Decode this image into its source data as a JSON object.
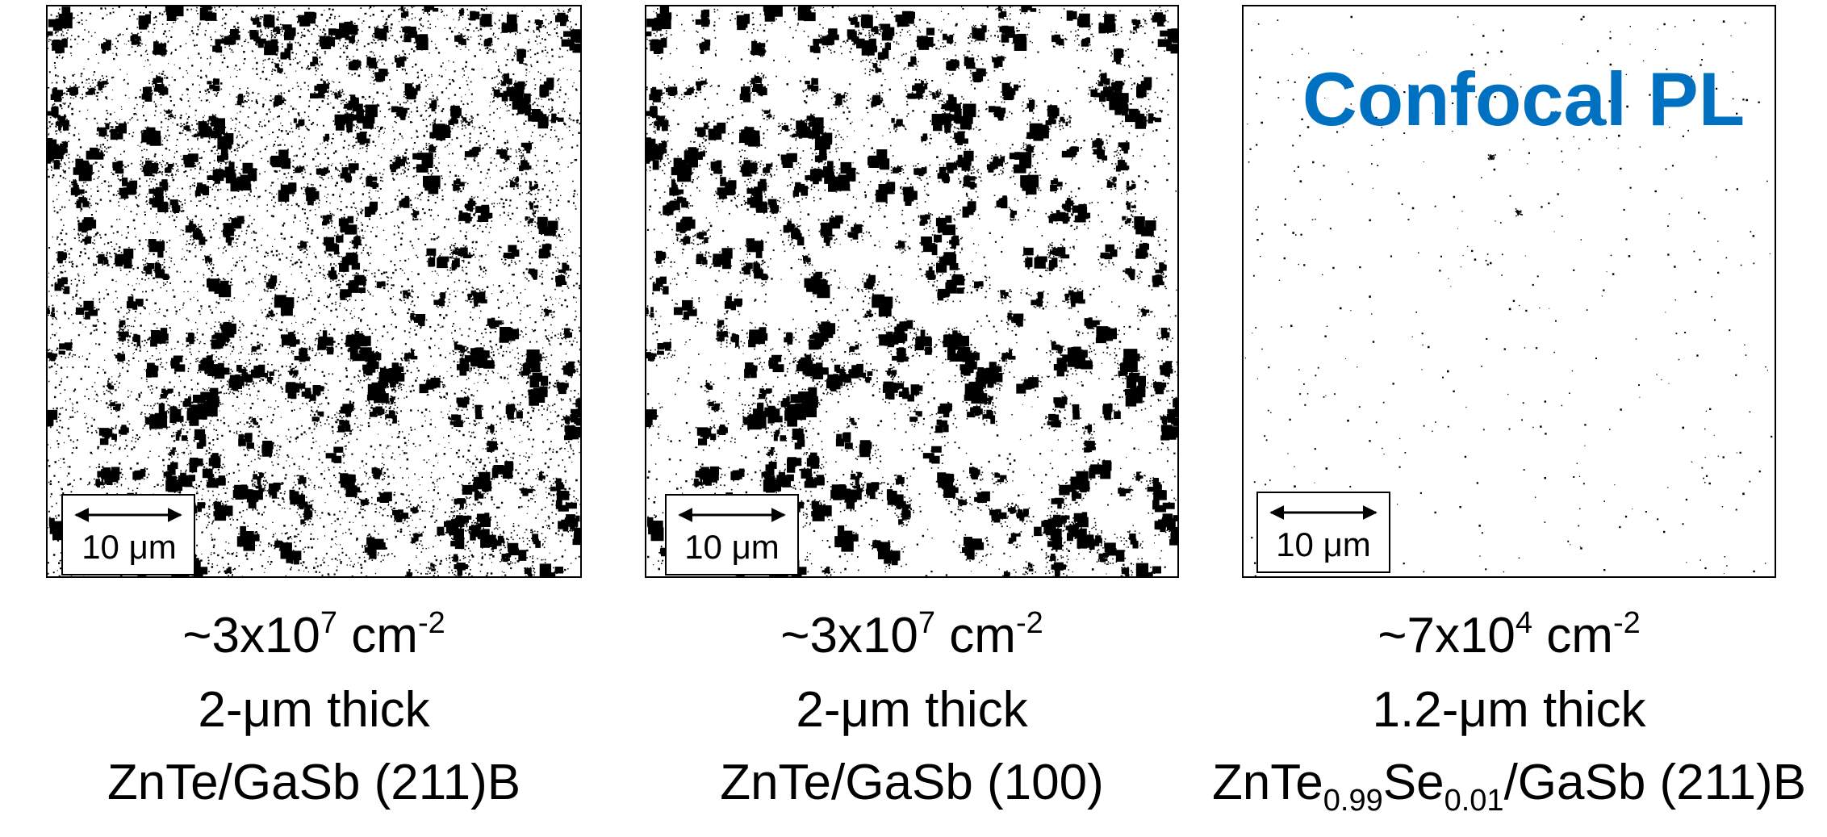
{
  "panels": [
    {
      "scale_bar": "10 μm",
      "density": {
        "prefix": "~3x10",
        "exponent": "7",
        "unit": " cm",
        "unit_exponent": "-2"
      },
      "thickness": "2-μm thick",
      "material_parts": [
        "ZnTe/GaSb (211)B"
      ]
    },
    {
      "scale_bar": "10 μm",
      "density": {
        "prefix": "~3x10",
        "exponent": "7",
        "unit": " cm",
        "unit_exponent": "-2"
      },
      "thickness": "2-μm thick",
      "material_parts": [
        "ZnTe/GaSb (100)"
      ]
    },
    {
      "scale_bar": "10 μm",
      "density": {
        "prefix": "~7x10",
        "exponent": "4",
        "unit": " cm",
        "unit_exponent": "-2"
      },
      "thickness": "1.2-μm thick",
      "material_parts": [
        "ZnTe",
        "0.99",
        "Se",
        "0.01",
        "/GaSb (211)B"
      ]
    }
  ],
  "overlay_label": "Confocal PL"
}
